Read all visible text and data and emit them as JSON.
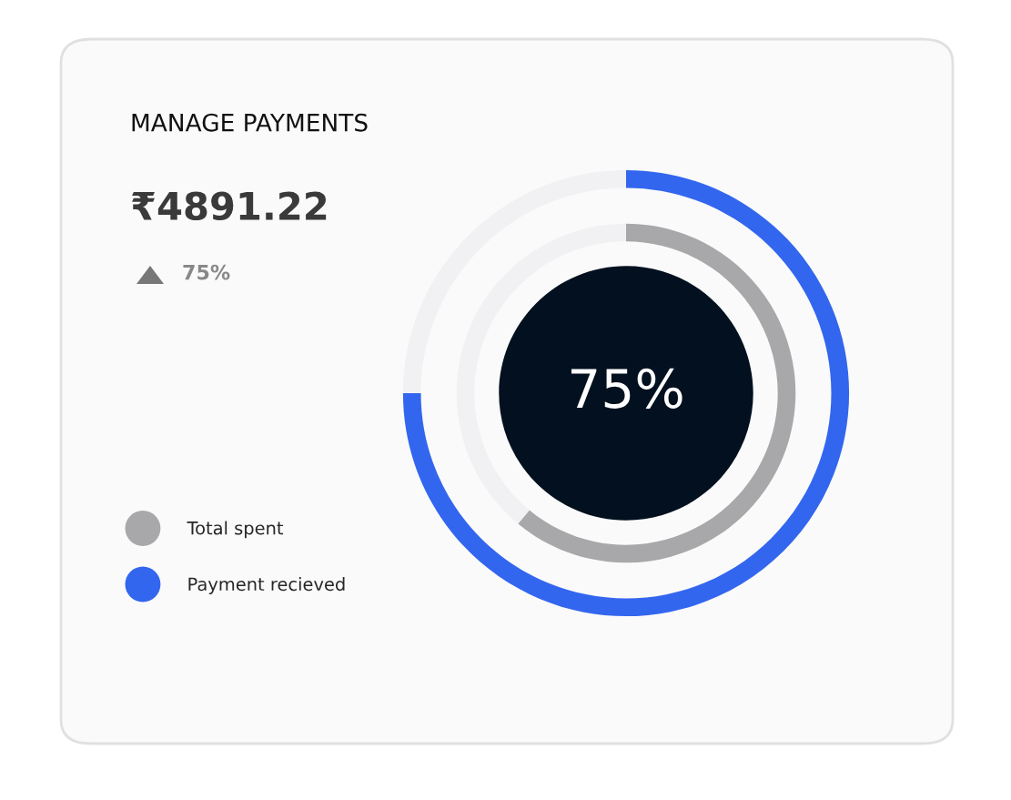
{
  "chart_data": {
    "type": "donut",
    "title": "MANAGE PAYMENTS",
    "annotations": [
      "₹4891.22",
      "75%",
      "75%"
    ],
    "categories": [
      null,
      null
    ],
    "series": [
      {
        "name": "Payment recieved",
        "color": "#3366ee",
        "colors": [
          "#3366ee",
          "#f1f1f3"
        ],
        "values": [
          75,
          25
        ]
      },
      {
        "name": "Total spent",
        "color": "#a8a8aa",
        "colors": [
          "#a8a8aa",
          "#f1f1f3"
        ],
        "values": [
          61,
          39
        ]
      }
    ],
    "legend": "left"
  }
}
